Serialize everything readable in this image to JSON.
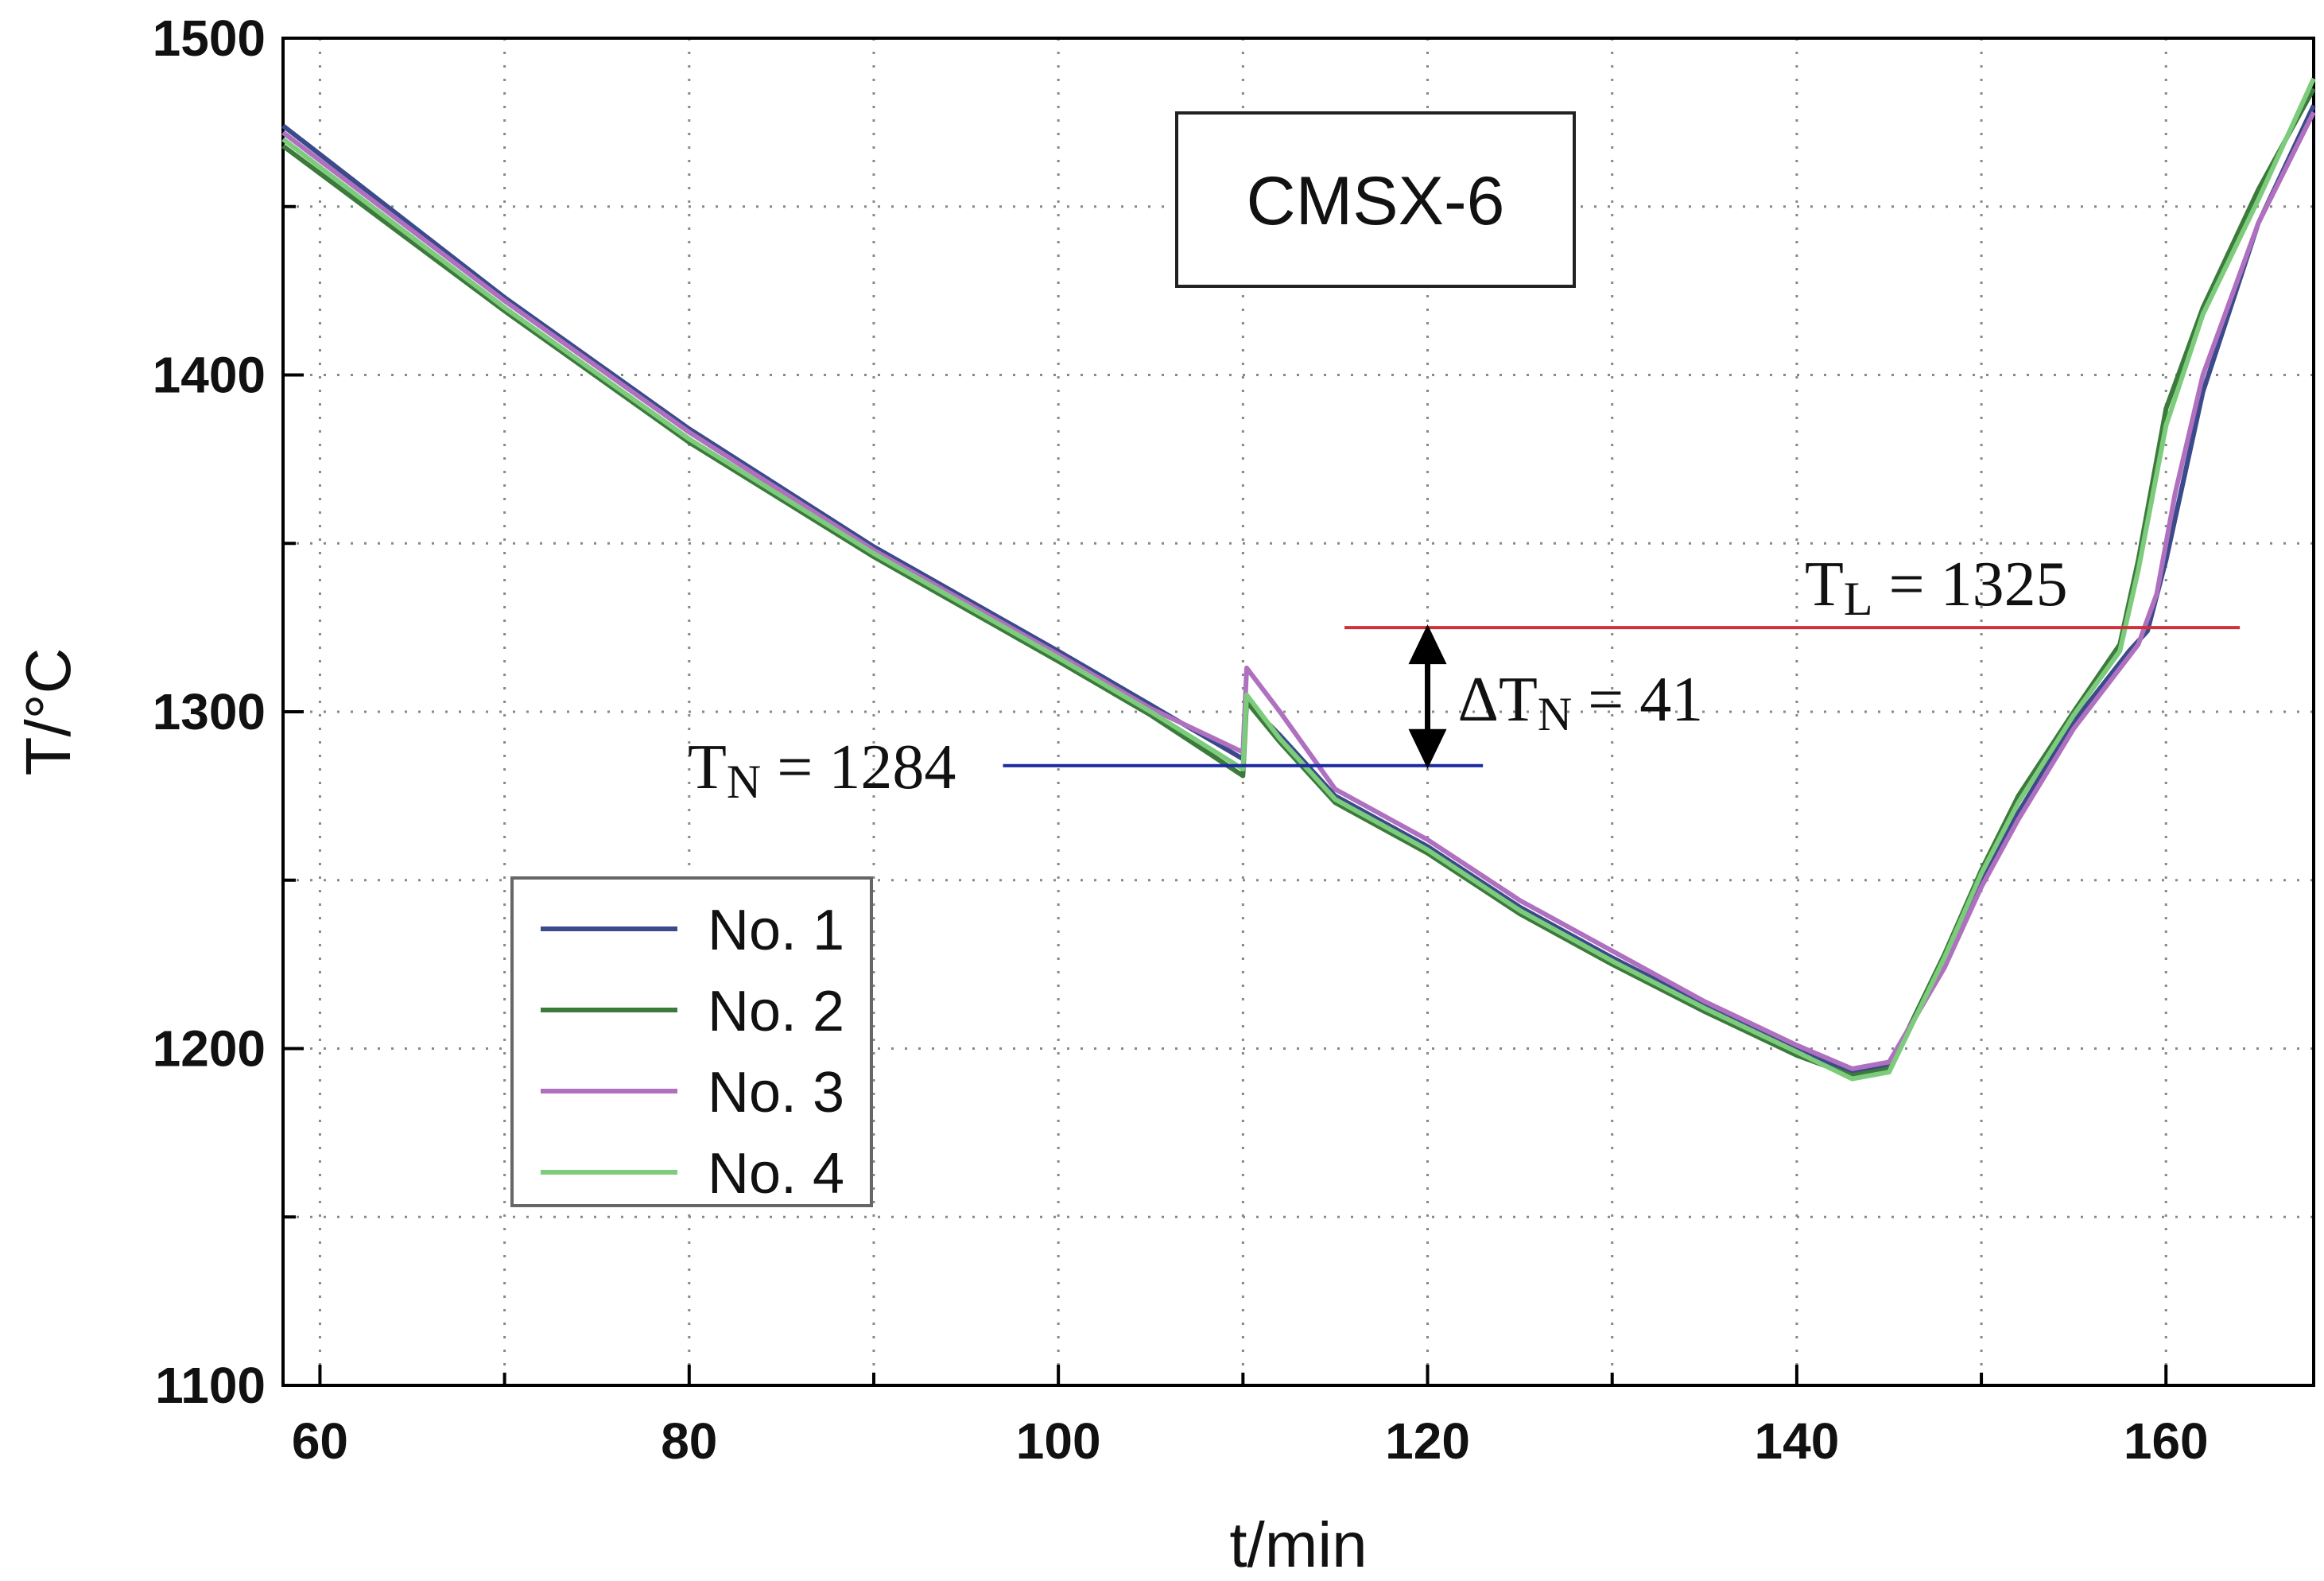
{
  "chart_data": {
    "type": "line",
    "title": "CMSX-6",
    "xlabel": "t/min",
    "ylabel": "T/°C",
    "xlim": [
      58,
      168
    ],
    "ylim": [
      1100,
      1500
    ],
    "x_ticks": [
      60,
      80,
      100,
      120,
      140,
      160
    ],
    "y_ticks": [
      1100,
      1200,
      1300,
      1400,
      1500
    ],
    "grid": true,
    "legend_position": "bottom-left",
    "series": [
      {
        "name": "No. 1",
        "color": "#3a4a8a",
        "points": [
          [
            58,
            1474
          ],
          [
            70,
            1423
          ],
          [
            80,
            1384
          ],
          [
            90,
            1349
          ],
          [
            100,
            1318
          ],
          [
            105,
            1302
          ],
          [
            110,
            1286
          ],
          [
            110.2,
            1303
          ],
          [
            112,
            1293
          ],
          [
            115,
            1275
          ],
          [
            120,
            1260
          ],
          [
            125,
            1242
          ],
          [
            130,
            1227
          ],
          [
            135,
            1213
          ],
          [
            140,
            1200
          ],
          [
            143,
            1193
          ],
          [
            145,
            1195
          ],
          [
            148,
            1225
          ],
          [
            150,
            1250
          ],
          [
            152,
            1270
          ],
          [
            155,
            1297
          ],
          [
            158,
            1318
          ],
          [
            159,
            1324
          ],
          [
            160,
            1345
          ],
          [
            162,
            1395
          ],
          [
            165,
            1445
          ],
          [
            168,
            1480
          ]
        ]
      },
      {
        "name": "No. 2",
        "color": "#3c7a3c",
        "points": [
          [
            58,
            1468
          ],
          [
            70,
            1419
          ],
          [
            80,
            1380
          ],
          [
            90,
            1346
          ],
          [
            100,
            1315
          ],
          [
            105,
            1299
          ],
          [
            110,
            1281
          ],
          [
            110.2,
            1303
          ],
          [
            112,
            1291
          ],
          [
            115,
            1273
          ],
          [
            120,
            1258
          ],
          [
            125,
            1240
          ],
          [
            130,
            1225
          ],
          [
            135,
            1211
          ],
          [
            140,
            1198
          ],
          [
            143,
            1192
          ],
          [
            145,
            1194
          ],
          [
            148,
            1228
          ],
          [
            150,
            1253
          ],
          [
            152,
            1275
          ],
          [
            155,
            1300
          ],
          [
            157.5,
            1320
          ],
          [
            158.5,
            1345
          ],
          [
            160,
            1390
          ],
          [
            162,
            1420
          ],
          [
            165,
            1455
          ],
          [
            168,
            1485
          ]
        ]
      },
      {
        "name": "No. 3",
        "color": "#b070c0",
        "points": [
          [
            58,
            1472
          ],
          [
            70,
            1422
          ],
          [
            80,
            1383
          ],
          [
            90,
            1348
          ],
          [
            100,
            1317
          ],
          [
            105,
            1301
          ],
          [
            110,
            1288
          ],
          [
            110.2,
            1313
          ],
          [
            112,
            1300
          ],
          [
            115,
            1277
          ],
          [
            120,
            1262
          ],
          [
            125,
            1244
          ],
          [
            130,
            1229
          ],
          [
            135,
            1214
          ],
          [
            140,
            1201
          ],
          [
            143,
            1194
          ],
          [
            145,
            1196
          ],
          [
            148,
            1224
          ],
          [
            150,
            1248
          ],
          [
            152,
            1268
          ],
          [
            155,
            1295
          ],
          [
            158.5,
            1320
          ],
          [
            159.5,
            1335
          ],
          [
            160.5,
            1365
          ],
          [
            162,
            1400
          ],
          [
            165,
            1445
          ],
          [
            168,
            1478
          ]
        ]
      },
      {
        "name": "No. 4",
        "color": "#7ccc7c",
        "points": [
          [
            58,
            1470
          ],
          [
            70,
            1420
          ],
          [
            80,
            1381
          ],
          [
            90,
            1347
          ],
          [
            100,
            1316
          ],
          [
            105,
            1300
          ],
          [
            110,
            1283
          ],
          [
            110.2,
            1305
          ],
          [
            112,
            1292
          ],
          [
            115,
            1274
          ],
          [
            120,
            1259
          ],
          [
            125,
            1241
          ],
          [
            130,
            1226
          ],
          [
            135,
            1212
          ],
          [
            140,
            1199
          ],
          [
            143,
            1191
          ],
          [
            145,
            1193
          ],
          [
            148,
            1227
          ],
          [
            150,
            1252
          ],
          [
            152,
            1273
          ],
          [
            155,
            1299
          ],
          [
            157.5,
            1318
          ],
          [
            158.5,
            1342
          ],
          [
            160,
            1385
          ],
          [
            162,
            1418
          ],
          [
            165,
            1452
          ],
          [
            168,
            1488
          ]
        ]
      }
    ],
    "annotations": {
      "tn": {
        "label": "TN = 1284",
        "sym": "T",
        "sub": "N",
        "rest": " = 1284",
        "value": 1284,
        "x_start": 97,
        "x_end": 123,
        "color": "#1a2aa0"
      },
      "tl": {
        "label": "TL = 1325",
        "sym": "T",
        "sub": "L",
        "rest": " = 1325",
        "value": 1325,
        "x_start": 115.5,
        "x_end": 164,
        "color": "#d0303a"
      },
      "delta": {
        "label": "ΔTN = 41",
        "sym": "ΔT",
        "sub": "N",
        "rest": " = 41",
        "x": 120
      }
    }
  }
}
